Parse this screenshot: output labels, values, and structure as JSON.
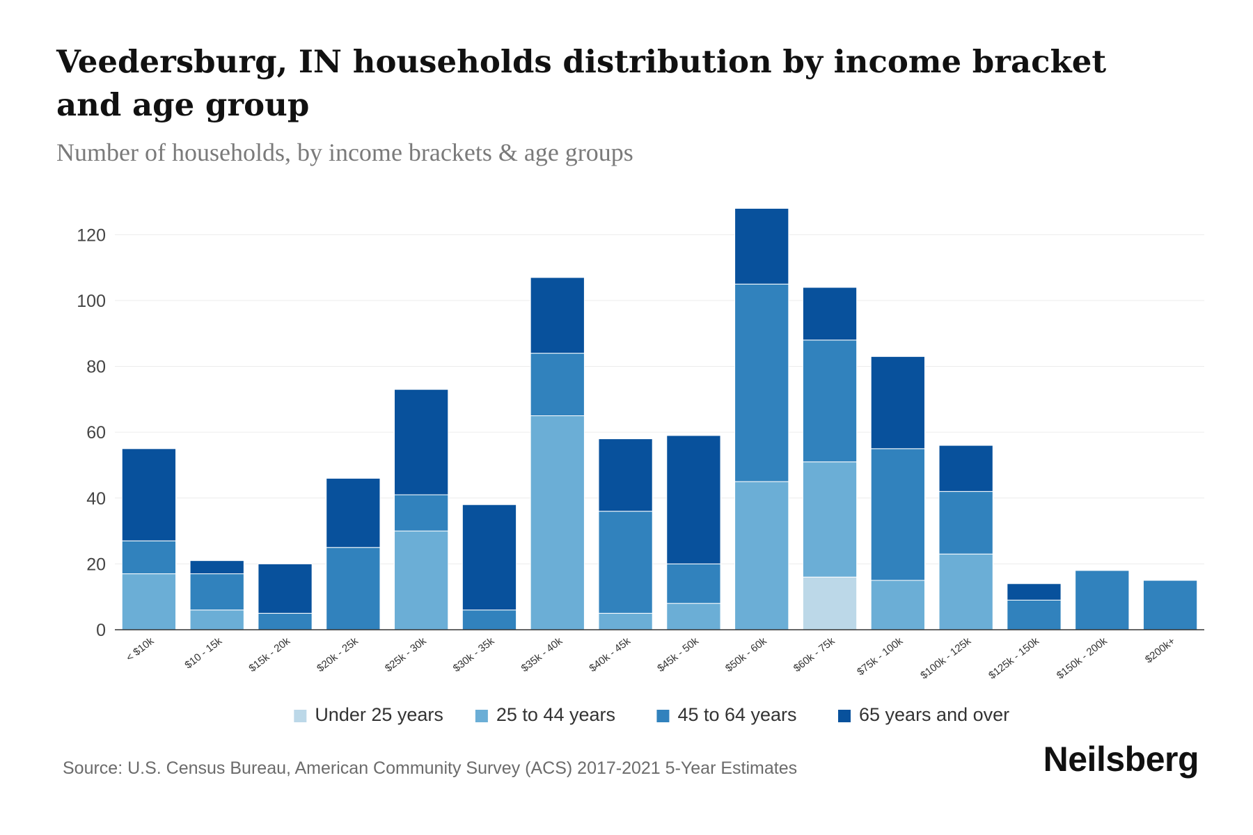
{
  "chart_data": {
    "type": "bar",
    "stacked": true,
    "title": "Veedersburg, IN households distribution by income bracket and age group",
    "subtitle": "Number of households, by income brackets & age groups",
    "xlabel": "",
    "ylabel": "",
    "ylim": [
      0,
      130
    ],
    "yticks": [
      0,
      20,
      40,
      60,
      80,
      100,
      120
    ],
    "grid": true,
    "legend_position": "bottom",
    "categories": [
      "< $10k",
      "$10 - 15k",
      "$15k - 20k",
      "$20k - 25k",
      "$25k - 30k",
      "$30k - 35k",
      "$35k - 40k",
      "$40k - 45k",
      "$45k - 50k",
      "$50k - 60k",
      "$60k - 75k",
      "$75k - 100k",
      "$100k - 125k",
      "$125k - 150k",
      "$150k - 200k",
      "$200k+"
    ],
    "series": [
      {
        "name": "Under 25 years",
        "color": "#bcd8e8",
        "values": [
          0,
          0,
          0,
          0,
          0,
          0,
          0,
          0,
          0,
          0,
          16,
          0,
          0,
          0,
          0,
          0
        ]
      },
      {
        "name": "25 to 44 years",
        "color": "#6baed6",
        "values": [
          17,
          6,
          0,
          0,
          30,
          0,
          65,
          5,
          8,
          45,
          35,
          15,
          23,
          0,
          0,
          0
        ]
      },
      {
        "name": "45 to 64 years",
        "color": "#3182bd",
        "values": [
          10,
          11,
          5,
          25,
          11,
          6,
          19,
          31,
          12,
          60,
          37,
          40,
          19,
          9,
          18,
          15
        ]
      },
      {
        "name": "65 years and over",
        "color": "#08519c",
        "values": [
          28,
          4,
          15,
          21,
          32,
          32,
          23,
          22,
          39,
          23,
          16,
          28,
          14,
          5,
          0,
          0
        ]
      }
    ]
  },
  "source": "Source: U.S. Census Bureau, American Community Survey (ACS) 2017-2021 5-Year Estimates",
  "brand": "Neilsberg"
}
